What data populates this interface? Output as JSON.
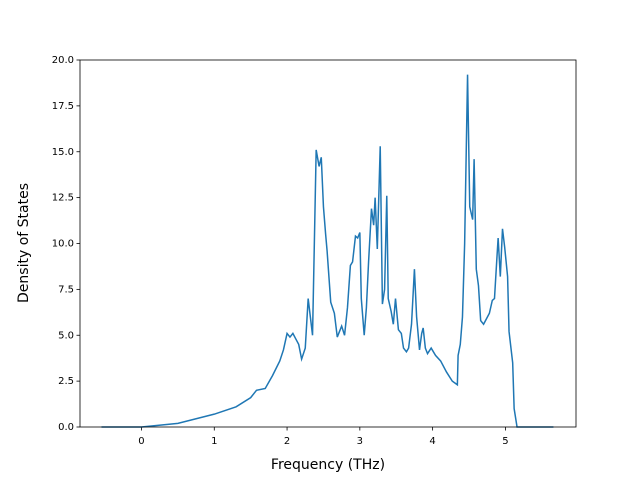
{
  "chart_data": {
    "type": "line",
    "xlabel": "Frequency (THz)",
    "ylabel": "Density of States",
    "xlim": [
      -0.845,
      5.97
    ],
    "ylim": [
      0,
      20.0
    ],
    "xticks": [
      0,
      1,
      2,
      3,
      4,
      5
    ],
    "yticks": [
      {
        "value": 0,
        "label": "0.0"
      },
      2.5,
      {
        "value": 5,
        "label": "5.0"
      },
      7.5,
      {
        "value": 10,
        "label": "10.0"
      },
      12.5,
      {
        "value": 15,
        "label": "15.0"
      },
      17.5,
      {
        "value": 20,
        "label": "20.0"
      }
    ],
    "grid": false,
    "x": [
      -0.55,
      0,
      0.5,
      1.0,
      1.3,
      1.5,
      1.58,
      1.7,
      1.8,
      1.9,
      1.95,
      2.0,
      2.04,
      2.08,
      2.12,
      2.16,
      2.2,
      2.25,
      2.29,
      2.35,
      2.4,
      2.44,
      2.47,
      2.5,
      2.53,
      2.55,
      2.6,
      2.65,
      2.69,
      2.75,
      2.79,
      2.83,
      2.87,
      2.9,
      2.94,
      2.97,
      3.0,
      3.02,
      3.06,
      3.09,
      3.12,
      3.16,
      3.19,
      3.21,
      3.24,
      3.28,
      3.31,
      3.34,
      3.37,
      3.39,
      3.43,
      3.46,
      3.49,
      3.53,
      3.57,
      3.6,
      3.64,
      3.67,
      3.71,
      3.75,
      3.78,
      3.82,
      3.85,
      3.87,
      3.9,
      3.93,
      3.98,
      4.04,
      4.11,
      4.19,
      4.27,
      4.34,
      4.35,
      4.38,
      4.41,
      4.44,
      4.48,
      4.51,
      4.55,
      4.57,
      4.6,
      4.63,
      4.66,
      4.7,
      4.74,
      4.78,
      4.82,
      4.85,
      4.88,
      4.9,
      4.93,
      4.96,
      4.99,
      5.03,
      5.05,
      5.1,
      5.12,
      5.16,
      5.66
    ],
    "series": [
      {
        "name": "Density of States",
        "color": "#1f77b4",
        "values": [
          0,
          0,
          0.2,
          0.7,
          1.1,
          1.6,
          2.0,
          2.1,
          2.8,
          3.6,
          4.2,
          5.1,
          4.9,
          5.1,
          4.8,
          4.5,
          3.7,
          4.3,
          7.0,
          5.0,
          15.1,
          14.2,
          14.7,
          12.0,
          10.5,
          9.6,
          6.8,
          6.2,
          4.9,
          5.5,
          5.0,
          6.5,
          8.8,
          9.0,
          10.4,
          10.3,
          10.6,
          7.0,
          5.0,
          6.5,
          9.0,
          11.9,
          11.0,
          12.5,
          9.7,
          15.3,
          6.7,
          7.5,
          12.6,
          7.0,
          6.3,
          5.6,
          7.0,
          5.3,
          5.1,
          4.3,
          4.1,
          4.3,
          5.6,
          8.6,
          6.0,
          4.2,
          5.1,
          5.4,
          4.3,
          4.0,
          4.3,
          3.9,
          3.6,
          3.0,
          2.5,
          2.3,
          3.9,
          4.5,
          6.0,
          10.0,
          19.2,
          12.0,
          11.3,
          14.6,
          8.6,
          7.7,
          5.8,
          5.6,
          5.9,
          6.2,
          6.9,
          7.0,
          9.0,
          10.3,
          8.2,
          10.8,
          9.8,
          8.2,
          5.2,
          3.5,
          1.0,
          0,
          0
        ]
      }
    ]
  }
}
